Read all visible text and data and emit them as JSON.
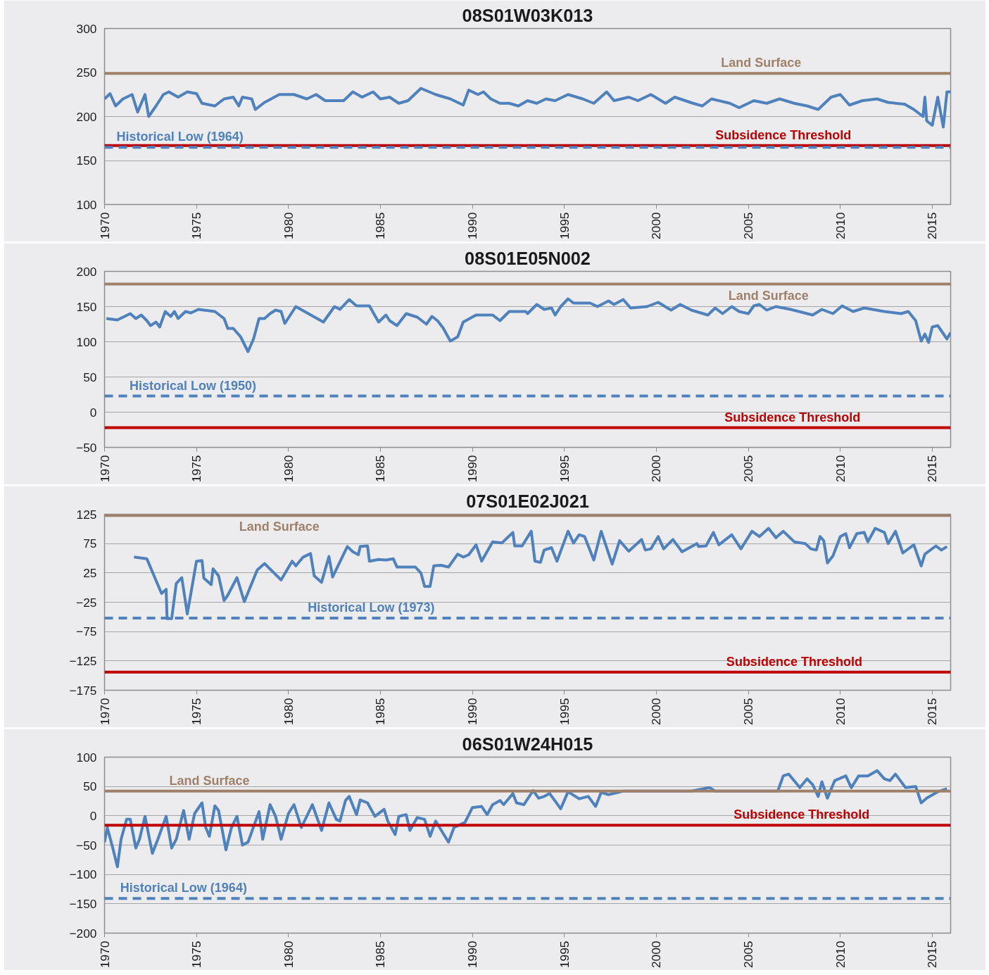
{
  "chart_data": [
    {
      "type": "line",
      "title": "08S01W03K013",
      "xlim": [
        1970,
        2016
      ],
      "xticks": [
        1970,
        1975,
        1980,
        1985,
        1990,
        1995,
        2000,
        2005,
        2010,
        2015
      ],
      "ylim": [
        100,
        300
      ],
      "yticks": [
        100,
        150,
        200,
        250,
        300
      ],
      "grid": "y",
      "series": [
        {
          "color": "#4f81bd",
          "x": [
            1970,
            1970.3,
            1970.6,
            1971,
            1971.5,
            1971.8,
            1972.2,
            1972.4,
            1972.8,
            1973.2,
            1973.5,
            1974,
            1974.5,
            1975,
            1975.3,
            1976,
            1976.5,
            1977,
            1977.3,
            1977.5,
            1978,
            1978.2,
            1978.7,
            1979.5,
            1980.3,
            1981,
            1981.5,
            1982,
            1983,
            1983.5,
            1984,
            1984.6,
            1985,
            1985.5,
            1986,
            1986.5,
            1987.2,
            1988,
            1988.8,
            1989.5,
            1989.8,
            1990.3,
            1990.6,
            1991,
            1991.5,
            1992,
            1992.5,
            1993,
            1993.5,
            1994,
            1994.5,
            1995.2,
            1996,
            1996.6,
            1997.3,
            1997.7,
            1998.5,
            1999,
            1999.7,
            2000.5,
            2001,
            2002,
            2002.5,
            2003,
            2004,
            2004.5,
            2005.3,
            2006,
            2006.7,
            2007.5,
            2008.2,
            2008.8,
            2009.5,
            2010,
            2010.5,
            2011.2,
            2012,
            2012.6,
            2013.5,
            2014,
            2014.5,
            2014.6,
            2014.7,
            2015,
            2015.3,
            2015.6,
            2015.8,
            2016
          ],
          "values": [
            220,
            226,
            212,
            220,
            225,
            205,
            225,
            200,
            212,
            225,
            228,
            222,
            228,
            226,
            215,
            212,
            220,
            222,
            212,
            222,
            220,
            208,
            216,
            225,
            225,
            220,
            225,
            218,
            218,
            228,
            222,
            228,
            220,
            222,
            215,
            218,
            232,
            225,
            220,
            213,
            230,
            225,
            228,
            220,
            215,
            215,
            212,
            218,
            215,
            220,
            218,
            225,
            220,
            215,
            228,
            218,
            222,
            218,
            225,
            215,
            222,
            215,
            212,
            220,
            215,
            210,
            218,
            215,
            220,
            215,
            212,
            208,
            222,
            225,
            213,
            218,
            220,
            216,
            214,
            208,
            200,
            222,
            195,
            190,
            222,
            188,
            228,
            228
          ]
        }
      ],
      "ref_lines": [
        {
          "axis": "y",
          "value": 249,
          "label": "Land Surface",
          "color": "#a08068"
        },
        {
          "axis": "y",
          "value": 167,
          "label": "Subsidence Threshold",
          "color": "#c00000"
        },
        {
          "axis": "y",
          "value": 165,
          "label": "Historical Low (1964)",
          "color": "#4f81bd",
          "line_style": "dashed"
        }
      ]
    },
    {
      "type": "line",
      "title": "08S01E05N002",
      "xlim": [
        1970,
        2016
      ],
      "xticks": [
        1970,
        1975,
        1980,
        1985,
        1990,
        1995,
        2000,
        2005,
        2010,
        2015
      ],
      "ylim": [
        -50,
        200
      ],
      "yticks": [
        -50,
        0,
        50,
        100,
        150,
        200
      ],
      "grid": "y",
      "series": [
        {
          "color": "#4f81bd",
          "x": [
            1970.1,
            1970.7,
            1971.4,
            1971.7,
            1972.0,
            1972.3,
            1972.5,
            1972.8,
            1973.0,
            1973.3,
            1973.6,
            1973.8,
            1974.0,
            1974.4,
            1974.7,
            1975.1,
            1976.0,
            1976.5,
            1976.7,
            1977.0,
            1977.4,
            1977.8,
            1978.1,
            1978.4,
            1978.7,
            1979.0,
            1979.3,
            1979.6,
            1979.8,
            1980.4,
            1981.9,
            1982.5,
            1982.8,
            1983.3,
            1983.7,
            1984.4,
            1984.9,
            1985.3,
            1985.5,
            1985.9,
            1986.4,
            1987.0,
            1987.5,
            1987.8,
            1988.1,
            1988.4,
            1988.8,
            1989.2,
            1989.5,
            1990.2,
            1991.1,
            1991.5,
            1992.0,
            1992.9,
            1993.0,
            1993.5,
            1993.9,
            1994.3,
            1994.5,
            1994.8,
            1995.2,
            1995.5,
            1996.4,
            1996.8,
            1997.4,
            1997.7,
            1998.2,
            1998.6,
            1999.5,
            2000.1,
            2000.8,
            2001.3,
            2001.9,
            2002.8,
            2003.2,
            2003.6,
            2004.1,
            2004.5,
            2005.0,
            2005.3,
            2005.6,
            2006.0,
            2006.5,
            2007.3,
            2008.5,
            2009.0,
            2009.6,
            2010.1,
            2010.7,
            2011.3,
            2012.4,
            2013.3,
            2013.7,
            2014.1,
            2014.4,
            2014.6,
            2014.8,
            2015.0,
            2015.3,
            2015.8,
            2016.0
          ],
          "values": [
            133,
            131,
            140,
            133,
            138,
            130,
            123,
            128,
            121,
            143,
            136,
            143,
            133,
            143,
            141,
            146,
            143,
            133,
            119,
            119,
            107,
            86,
            104,
            133,
            133,
            140,
            145,
            143,
            126,
            150,
            128,
            150,
            146,
            160,
            151,
            151,
            128,
            138,
            130,
            123,
            140,
            135,
            125,
            136,
            130,
            120,
            101,
            107,
            128,
            138,
            138,
            130,
            143,
            143,
            140,
            153,
            146,
            148,
            138,
            150,
            161,
            155,
            155,
            150,
            158,
            153,
            160,
            148,
            150,
            156,
            145,
            153,
            145,
            138,
            148,
            140,
            150,
            143,
            140,
            151,
            153,
            145,
            150,
            146,
            138,
            146,
            140,
            151,
            143,
            148,
            143,
            140,
            143,
            130,
            101,
            111,
            99,
            121,
            123,
            104,
            113
          ]
        }
      ],
      "ref_lines": [
        {
          "axis": "y",
          "value": 182,
          "label": "Land Surface",
          "color": "#a08068"
        },
        {
          "axis": "y",
          "value": 23,
          "label": "Historical Low (1950)",
          "color": "#4f81bd",
          "line_style": "dashed"
        },
        {
          "axis": "y",
          "value": -22,
          "label": "Subsidence Threshold",
          "color": "#c00000"
        }
      ]
    },
    {
      "type": "line",
      "title": "07S01E02J021",
      "xlim": [
        1970,
        2016
      ],
      "xticks": [
        1970,
        1975,
        1980,
        1985,
        1990,
        1995,
        2000,
        2005,
        2010,
        2015
      ],
      "ylim": [
        -175,
        125
      ],
      "yticks": [
        -175,
        -125,
        -75,
        -25,
        25,
        75,
        125
      ],
      "grid": "y",
      "series": [
        {
          "color": "#4f81bd",
          "x": [
            1971.6,
            1972.3,
            1973.1,
            1973.35,
            1973.4,
            1973.65,
            1973.9,
            1974.2,
            1974.5,
            1975.0,
            1975.3,
            1975.4,
            1975.8,
            1975.9,
            1976.2,
            1976.5,
            1976.7,
            1977.2,
            1977.6,
            1978.3,
            1978.7,
            1979.6,
            1980.2,
            1980.4,
            1980.8,
            1981.2,
            1981.4,
            1981.8,
            1982.2,
            1982.4,
            1983.2,
            1983.5,
            1983.8,
            1983.9,
            1984.3,
            1984.4,
            1984.9,
            1985.3,
            1985.7,
            1985.9,
            1986.9,
            1987.2,
            1987.4,
            1987.7,
            1987.9,
            1988.3,
            1988.7,
            1989.2,
            1989.5,
            1989.8,
            1990.2,
            1990.5,
            1991.1,
            1991.6,
            1992.2,
            1992.3,
            1992.7,
            1993.2,
            1993.4,
            1993.7,
            1993.9,
            1994.3,
            1994.6,
            1995.2,
            1995.5,
            1995.8,
            1996.1,
            1996.6,
            1997.0,
            1997.6,
            1998.0,
            1998.5,
            1999.2,
            1999.4,
            1999.7,
            2000.1,
            2000.4,
            2000.9,
            2001.4,
            2002.2,
            2002.3,
            2002.7,
            2003.1,
            2003.4,
            2004.1,
            2004.6,
            2005.2,
            2005.6,
            2006.1,
            2006.5,
            2006.9,
            2007.5,
            2008.1,
            2008.4,
            2008.7,
            2008.9,
            2009.1,
            2009.3,
            2009.6,
            2010.0,
            2010.3,
            2010.5,
            2010.9,
            2011.3,
            2011.5,
            2011.9,
            2012.4,
            2012.6,
            2013.0,
            2013.4,
            2014.0,
            2014.4,
            2014.6,
            2015.2,
            2015.5,
            2015.8
          ],
          "values": [
            52,
            49,
            -10,
            -3,
            -53,
            -53,
            7,
            17,
            -45,
            45,
            46,
            16,
            5,
            32,
            20,
            -22,
            -13,
            17,
            -24,
            30,
            41,
            13,
            45,
            37,
            52,
            58,
            20,
            9,
            53,
            18,
            70,
            61,
            56,
            70,
            71,
            45,
            48,
            47,
            49,
            35,
            35,
            25,
            2,
            2,
            37,
            38,
            35,
            57,
            52,
            56,
            73,
            45,
            78,
            76,
            94,
            71,
            71,
            96,
            45,
            43,
            64,
            68,
            45,
            96,
            76,
            90,
            87,
            47,
            96,
            40,
            80,
            62,
            82,
            64,
            66,
            87,
            66,
            82,
            61,
            75,
            70,
            71,
            94,
            73,
            90,
            66,
            96,
            87,
            101,
            85,
            96,
            78,
            75,
            66,
            64,
            87,
            80,
            42,
            54,
            87,
            92,
            68,
            92,
            94,
            78,
            101,
            94,
            75,
            96,
            59,
            73,
            37,
            57,
            71,
            64,
            70
          ]
        }
      ],
      "ref_lines": [
        {
          "axis": "y",
          "value": 123,
          "label": "Land Surface",
          "color": "#a08068"
        },
        {
          "axis": "y",
          "value": -52,
          "label": "Historical Low (1973)",
          "color": "#4f81bd",
          "line_style": "dashed"
        },
        {
          "axis": "y",
          "value": -144,
          "label": "Subsidence Threshold",
          "color": "#c00000"
        }
      ]
    },
    {
      "type": "line",
      "title": "06S01W24H015",
      "xlim": [
        1970,
        2016
      ],
      "xticks": [
        1970,
        1975,
        1980,
        1985,
        1990,
        1995,
        2000,
        2005,
        2010,
        2015
      ],
      "ylim": [
        -200,
        100
      ],
      "yticks": [
        -200,
        -150,
        -100,
        -50,
        0,
        50,
        100
      ],
      "grid": "y",
      "series": [
        {
          "color": "#4f81bd",
          "x": [
            1970.0,
            1970.15,
            1970.45,
            1970.7,
            1970.9,
            1971.2,
            1971.4,
            1971.7,
            1971.9,
            1972.2,
            1972.6,
            1972.9,
            1973.35,
            1973.65,
            1973.9,
            1974.3,
            1974.6,
            1974.9,
            1975.3,
            1975.5,
            1975.7,
            1976.0,
            1976.2,
            1976.6,
            1976.9,
            1977.2,
            1977.5,
            1977.8,
            1978.4,
            1978.6,
            1979.0,
            1979.3,
            1979.6,
            1980.0,
            1980.3,
            1980.7,
            1981.3,
            1981.8,
            1982.2,
            1982.6,
            1982.8,
            1983.1,
            1983.3,
            1983.7,
            1983.9,
            1984.3,
            1984.7,
            1985.2,
            1985.4,
            1985.8,
            1986.0,
            1986.4,
            1986.6,
            1987.0,
            1987.4,
            1987.7,
            1988.0,
            1988.7,
            1989.0,
            1989.6,
            1990.0,
            1990.5,
            1990.8,
            1991.1,
            1991.5,
            1991.7,
            1992.2,
            1992.4,
            1992.8,
            1993.3,
            1993.6,
            1993.9,
            1994.2,
            1994.8,
            1995.2,
            1995.8,
            1996.3,
            1996.7,
            1997.0,
            1997.4,
            1998.2,
            2001.6,
            2001.9,
            2002.9,
            2003.2,
            2006.6,
            2006.9,
            2007.2,
            2007.8,
            2008.2,
            2008.5,
            2008.8,
            2009.0,
            2009.3,
            2009.7,
            2010.3,
            2010.6,
            2011.0,
            2011.5,
            2012.0,
            2012.4,
            2012.7,
            2013.0,
            2013.55,
            2014.1,
            2014.4,
            2014.7,
            2015.3,
            2015.8
          ],
          "values": [
            -45,
            -20,
            -55,
            -87,
            -40,
            -6,
            -6,
            -55,
            -40,
            -1,
            -64,
            -40,
            -1,
            -55,
            -40,
            9,
            -40,
            4,
            22,
            -20,
            -35,
            17,
            9,
            -58,
            -20,
            -1,
            -50,
            -45,
            7,
            -40,
            19,
            -1,
            -40,
            4,
            19,
            -20,
            19,
            -25,
            22,
            -6,
            -9,
            26,
            33,
            2,
            27,
            22,
            -1,
            11,
            -9,
            -32,
            -1,
            2,
            -25,
            -3,
            -6,
            -35,
            -9,
            -45,
            -20,
            -11,
            14,
            16,
            2,
            19,
            26,
            19,
            38,
            22,
            19,
            43,
            30,
            33,
            38,
            12,
            41,
            29,
            33,
            16,
            40,
            36,
            42,
            42,
            42,
            48,
            42,
            42,
            68,
            71,
            48,
            63,
            53,
            33,
            58,
            30,
            60,
            68,
            48,
            68,
            68,
            77,
            63,
            60,
            71,
            48,
            50,
            22,
            30,
            41,
            46
          ]
        }
      ],
      "ref_lines": [
        {
          "axis": "y",
          "value": 42,
          "label": "Land Surface",
          "color": "#a08068"
        },
        {
          "axis": "y",
          "value": -16,
          "label": "Subsidence Threshold",
          "color": "#c00000"
        },
        {
          "axis": "y",
          "value": -141,
          "label": "Historical Low (1964)",
          "color": "#4f81bd",
          "line_style": "dashed"
        }
      ]
    }
  ]
}
